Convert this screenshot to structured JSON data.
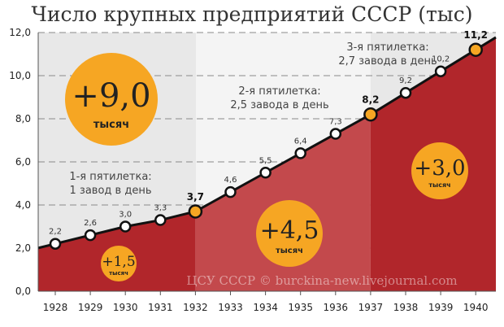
{
  "chart_data": {
    "type": "line",
    "title": "Число крупных предприятий СССР (тыс)",
    "x": [
      1928,
      1929,
      1930,
      1931,
      1932,
      1933,
      1934,
      1935,
      1936,
      1937,
      1938,
      1939,
      1940
    ],
    "series": [
      {
        "values": [
          2.2,
          2.6,
          3.0,
          3.3,
          3.7,
          4.6,
          5.5,
          6.4,
          7.3,
          8.2,
          9.2,
          10.2,
          11.2
        ]
      }
    ],
    "point_labels": [
      "2,2",
      "2,6",
      "3,0",
      "3,3",
      "3,7",
      "4,6",
      "5,5",
      "6,4",
      "7,3",
      "8,2",
      "9,2",
      "10,2",
      "11,2"
    ],
    "highlighted_years": [
      1932,
      1937,
      1940
    ],
    "ylim": [
      0,
      12
    ],
    "yticks": [
      "0,0",
      "2,0",
      "4,0",
      "6,0",
      "8,0",
      "10,0",
      "12,0"
    ],
    "grid": true,
    "periods": [
      {
        "label_line1": "1-я пятилетка:",
        "label_line2": "1 завод в день",
        "increase_value": "+1,5",
        "increase_unit": "тысяч",
        "from": 1928,
        "to": 1932
      },
      {
        "label_line1": "2-я пятилетка:",
        "label_line2": "2,5 завода в день",
        "increase_value": "+4,5",
        "increase_unit": "тысяч",
        "from": 1932,
        "to": 1937
      },
      {
        "label_line1": "3-я пятилетка:",
        "label_line2": "2,7 завода в день",
        "increase_value": "+3,0",
        "increase_unit": "тысяч",
        "from": 1937,
        "to": 1940
      }
    ],
    "total_increase": {
      "value": "+9,0",
      "unit": "тысяч"
    },
    "watermark": "ЦСУ СССР © burckina-new.livejournal.com",
    "colors": {
      "fill_dark": "#b1262b",
      "fill_light": "#c3494c",
      "badge": "#f6a623",
      "point_highlight": "#f6a623",
      "line": "#111111"
    }
  }
}
